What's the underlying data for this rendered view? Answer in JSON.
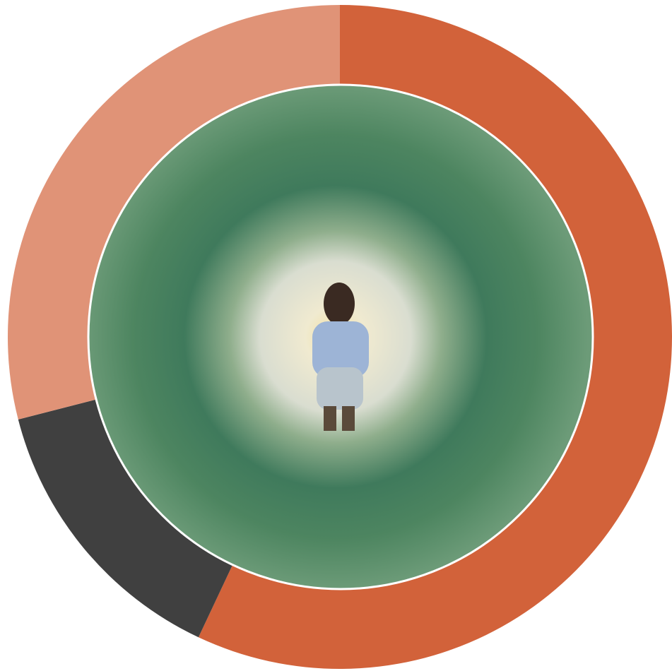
{
  "chart_data": {
    "type": "pie",
    "categories": [
      null,
      null,
      null
    ],
    "values": [
      57,
      14,
      29
    ],
    "colors": [
      "#d2623a",
      "#404040",
      "#e09377"
    ]
  }
}
